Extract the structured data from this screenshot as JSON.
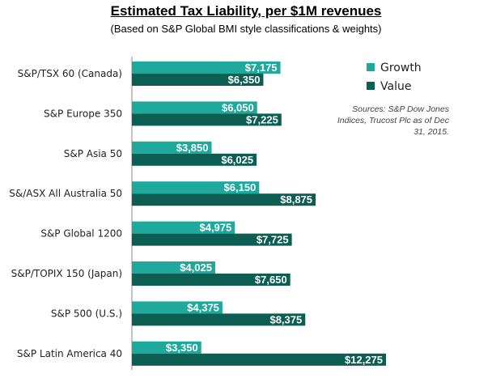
{
  "header": {
    "title": "Estimated Tax Liability, per $1M revenues",
    "subtitle": "(Based on S&P Global BMI style classifications & weights)"
  },
  "source_note": "Sources: S&P Dow Jones Indices, Trucost Plc as of Dec 31, 2015.",
  "colors": {
    "growth": "#1fa89c",
    "value": "#0d5e52"
  },
  "chart_data": {
    "type": "bar",
    "orientation": "horizontal",
    "categories": [
      "S&P/TSX 60 (Canada)",
      "S&P Europe 350",
      "S&P Asia 50",
      "S&/ASX All Australia 50",
      "S&P Global 1200",
      "S&P/TOPIX 150 (Japan)",
      "S&P 500 (U.S.)",
      "S&P Latin America 40"
    ],
    "series": [
      {
        "name": "Growth",
        "values": [
          7175,
          6050,
          3850,
          6150,
          4975,
          4025,
          4375,
          3350
        ],
        "labels": [
          "$7,175",
          "$6,050",
          "$3,850",
          "$6,150",
          "$4,975",
          "$4,025",
          "$4,375",
          "$3,350"
        ]
      },
      {
        "name": "Value",
        "values": [
          6350,
          7225,
          6025,
          8875,
          7725,
          7650,
          8375,
          12275
        ],
        "labels": [
          "$6,350",
          "$7,225",
          "$6,025",
          "$8,875",
          "$7,725",
          "$7,650",
          "$8,375",
          "$12,275"
        ]
      }
    ],
    "legend_position": "top-right",
    "grid": false
  }
}
